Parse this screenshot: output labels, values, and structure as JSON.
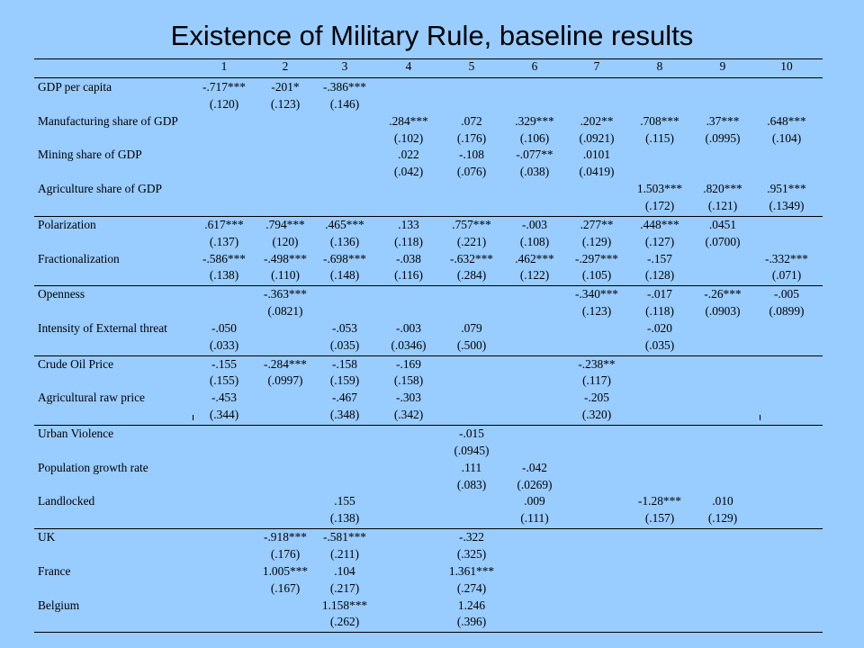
{
  "title": "Existence of Military Rule, baseline results",
  "columns": [
    "1",
    "2",
    "3",
    "4",
    "5",
    "6",
    "7",
    "8",
    "9",
    "10"
  ],
  "rows": [
    {
      "label": "GDP per capita",
      "group": 0,
      "coef": [
        "-.717***",
        "-201*",
        "-.386***",
        "",
        "",
        "",
        "",
        "",
        "",
        ""
      ],
      "se": [
        "(.120)",
        "(.123)",
        "(.146)",
        "",
        "",
        "",
        "",
        "",
        "",
        ""
      ]
    },
    {
      "label": "Manufacturing share of GDP",
      "group": 0,
      "coef": [
        "",
        "",
        "",
        ".284***",
        ".072",
        ".329***",
        ".202**",
        ".708***",
        ".37***",
        ".648***"
      ],
      "se": [
        "",
        "",
        "",
        "(.102)",
        "(.176)",
        "(.106)",
        "(.0921)",
        "(.115)",
        "(.0995)",
        "(.104)"
      ]
    },
    {
      "label": "Mining share of GDP",
      "group": 0,
      "coef": [
        "",
        "",
        "",
        ".022",
        "-.108",
        "-.077**",
        ".0101",
        "",
        "",
        ""
      ],
      "se": [
        "",
        "",
        "",
        "(.042)",
        "(.076)",
        "(.038)",
        "(.0419)",
        "",
        "",
        ""
      ]
    },
    {
      "label": "Agriculture share of GDP",
      "group": 0,
      "coef": [
        "",
        "",
        "",
        "",
        "",
        "",
        "",
        "1.503***",
        ".820***",
        ".951***"
      ],
      "se": [
        "",
        "",
        "",
        "",
        "",
        "",
        "",
        "(.172)",
        "(.121)",
        "(.1349)"
      ]
    },
    {
      "label": "Polarization",
      "group": 1,
      "coef": [
        ".617***",
        ".794***",
        ".465***",
        ".133",
        ".757***",
        "-.003",
        ".277**",
        ".448***",
        ".0451",
        ""
      ],
      "se": [
        "(.137)",
        "(120)",
        "(.136)",
        "(.118)",
        "(.221)",
        "(.108)",
        "(.129)",
        "(.127)",
        "(.0700)",
        ""
      ]
    },
    {
      "label": "Fractionalization",
      "group": 1,
      "coef": [
        "-.586***",
        "-.498***",
        "-.698***",
        "-.038",
        "-.632***",
        ".462***",
        "-.297***",
        "-.157",
        "",
        "-.332***"
      ],
      "se": [
        "(.138)",
        "(.110)",
        "(.148)",
        "(.116)",
        "(.284)",
        "(.122)",
        "(.105)",
        "(.128)",
        "",
        "(.071)"
      ]
    },
    {
      "label": "Openness",
      "group": 2,
      "coef": [
        "",
        "-.363***",
        "",
        "",
        "",
        "",
        "-.340***",
        "-.017",
        "-.26***",
        "-.005"
      ],
      "se": [
        "",
        "(.0821)",
        "",
        "",
        "",
        "",
        "(.123)",
        "(.118)",
        "(.0903)",
        "(.0899)"
      ]
    },
    {
      "label": "Intensity of External threat",
      "group": 2,
      "coef": [
        "-.050",
        "",
        "-.053",
        "-.003",
        ".079",
        "",
        "",
        "-.020",
        "",
        ""
      ],
      "se": [
        "(.033)",
        "",
        "(.035)",
        "(.0346)",
        "(.500)",
        "",
        "",
        "(.035)",
        "",
        ""
      ]
    },
    {
      "label": "Crude Oil Price",
      "group": 3,
      "coef": [
        "-.155",
        "-.284***",
        "-.158",
        "-.169",
        "",
        "",
        "-.238**",
        "",
        "",
        ""
      ],
      "se": [
        "(.155)",
        "(.0997)",
        "(.159)",
        "(.158)",
        "",
        "",
        "(.117)",
        "",
        "",
        ""
      ]
    },
    {
      "label": "Agricultural raw price",
      "group": 3,
      "coef": [
        "-.453",
        "",
        "-.467",
        "-.303",
        "",
        "",
        "-.205",
        "",
        "",
        ""
      ],
      "se": [
        "(.344)",
        "",
        "(.348)",
        "(.342)",
        "",
        "",
        "(.320)",
        "",
        "",
        ""
      ]
    },
    {
      "label": "Urban Violence",
      "group": 4,
      "coef": [
        "",
        "",
        "",
        "",
        "-.015",
        "",
        "",
        "",
        "",
        ""
      ],
      "se": [
        "",
        "",
        "",
        "",
        "(.0945)",
        "",
        "",
        "",
        "",
        ""
      ]
    },
    {
      "label": "Population growth rate",
      "group": 4,
      "coef": [
        "",
        "",
        "",
        "",
        ".111",
        "-.042",
        "",
        "",
        "",
        ""
      ],
      "se": [
        "",
        "",
        "",
        "",
        "(.083)",
        "(.0269)",
        "",
        "",
        "",
        ""
      ]
    },
    {
      "label": "Landlocked",
      "group": 4,
      "coef": [
        "",
        "",
        ".155",
        "",
        "",
        ".009",
        "",
        "-1.28***",
        ".010",
        ""
      ],
      "se": [
        "",
        "",
        "(.138)",
        "",
        "",
        "(.111)",
        "",
        "(.157)",
        "(.129)",
        ""
      ]
    },
    {
      "label": "UK",
      "group": 5,
      "coef": [
        "",
        "-.918***",
        "-.581***",
        "",
        "-.322",
        "",
        "",
        "",
        "",
        ""
      ],
      "se": [
        "",
        "(.176)",
        "(.211)",
        "",
        "(.325)",
        "",
        "",
        "",
        "",
        ""
      ]
    },
    {
      "label": "France",
      "group": 5,
      "coef": [
        "",
        "1.005***",
        ".104",
        "",
        "1.361***",
        "",
        "",
        "",
        "",
        ""
      ],
      "se": [
        "",
        "(.167)",
        "(.217)",
        "",
        "(.274)",
        "",
        "",
        "",
        "",
        ""
      ]
    },
    {
      "label": "Belgium",
      "group": 5,
      "coef": [
        "",
        "",
        "1.158***",
        "",
        "1.246",
        "",
        "",
        "",
        "",
        ""
      ],
      "se": [
        "",
        "",
        "(.262)",
        "",
        "(.396)",
        "",
        "",
        "",
        "",
        ""
      ]
    }
  ]
}
